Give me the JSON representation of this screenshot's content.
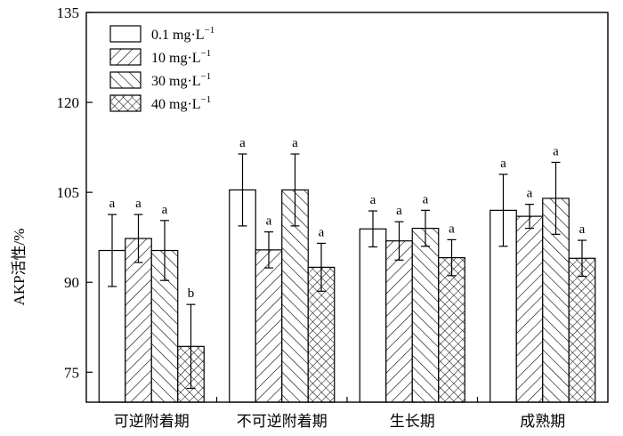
{
  "chart_data": {
    "type": "bar",
    "title": "",
    "xlabel": "",
    "ylabel": "AKP活性/%",
    "ylim": [
      70,
      135
    ],
    "yticks": [
      75,
      90,
      105,
      120,
      135
    ],
    "grid": false,
    "legend_position": "top-left",
    "categories": [
      "可逆附着期",
      "不可逆附着期",
      "生长期",
      "成熟期"
    ],
    "series": [
      {
        "name": "0.1 mg·L",
        "name_sup": "−1",
        "pattern": "none",
        "values": [
          95.3,
          105.4,
          98.9,
          102.0
        ],
        "errors": [
          6.0,
          6.0,
          3.0,
          6.0
        ],
        "labels": [
          "a",
          "a",
          "a",
          "a"
        ]
      },
      {
        "name": "10 mg·L",
        "name_sup": "−1",
        "pattern": "diagonal-forward",
        "values": [
          97.3,
          95.4,
          96.9,
          101.0
        ],
        "errors": [
          4.0,
          3.0,
          3.2,
          2.0
        ],
        "labels": [
          "a",
          "a",
          "a",
          "a"
        ]
      },
      {
        "name": "30 mg·L",
        "name_sup": "−1",
        "pattern": "diagonal-backward",
        "values": [
          95.3,
          105.4,
          99.0,
          104.0
        ],
        "errors": [
          5.0,
          6.0,
          3.0,
          6.0
        ],
        "labels": [
          "a",
          "a",
          "a",
          "a"
        ]
      },
      {
        "name": "40 mg·L",
        "name_sup": "−1",
        "pattern": "crosshatch",
        "values": [
          79.3,
          92.5,
          94.1,
          94.0
        ],
        "errors": [
          7.0,
          4.0,
          3.0,
          3.0
        ],
        "labels": [
          "b",
          "a",
          "a",
          "a"
        ]
      }
    ]
  }
}
